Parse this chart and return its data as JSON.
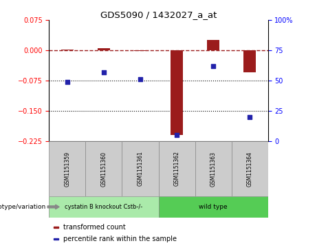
{
  "title": "GDS5090 / 1432027_a_at",
  "samples": [
    "GSM1151359",
    "GSM1151360",
    "GSM1151361",
    "GSM1151362",
    "GSM1151363",
    "GSM1151364"
  ],
  "transformed_count": [
    0.002,
    0.005,
    -0.002,
    -0.21,
    0.025,
    -0.055
  ],
  "percentile_rank": [
    49,
    57,
    51,
    5,
    62,
    20
  ],
  "ylim_left": [
    -0.225,
    0.075
  ],
  "ylim_right": [
    0,
    100
  ],
  "yticks_left": [
    0.075,
    0,
    -0.075,
    -0.15,
    -0.225
  ],
  "yticks_right": [
    100,
    75,
    50,
    25,
    0
  ],
  "ytick_labels_right": [
    "100%",
    "75",
    "50",
    "25",
    "0"
  ],
  "hlines": [
    -0.075,
    -0.15
  ],
  "dashed_hline": 0,
  "bar_color": "#9B1C1C",
  "scatter_color": "#2222AA",
  "group1_label": "cystatin B knockout Cstb-/-",
  "group2_label": "wild type",
  "group1_color": "#AAEAAA",
  "group2_color": "#55CC55",
  "genotype_label": "genotype/variation",
  "legend_label1": "transformed count",
  "legend_label2": "percentile rank within the sample",
  "bar_width": 0.35,
  "sample_box_color": "#CCCCCC"
}
